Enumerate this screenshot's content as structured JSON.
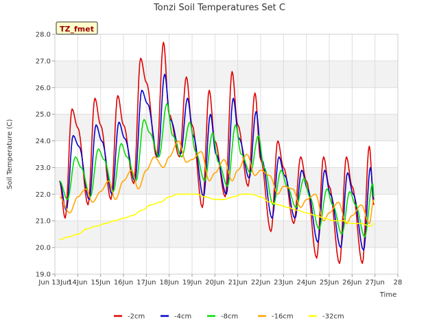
{
  "chart_data": {
    "type": "line",
    "title": "Tonzi Soil Temperatures Set C",
    "xlabel": "Time",
    "ylabel": "Soil Temperature (C)",
    "badge": "TZ_fmet",
    "xlim": [
      13,
      28
    ],
    "ylim": [
      19.0,
      28.0
    ],
    "x_tick_values": [
      13,
      14,
      15,
      16,
      17,
      18,
      19,
      20,
      21,
      22,
      23,
      24,
      25,
      26,
      27,
      28
    ],
    "x_tick_labels": [
      "Jun 13Jun",
      "14Jun",
      "15Jun",
      "16Jun",
      "17Jun",
      "18Jun",
      "19Jun",
      "20Jun",
      "21Jun",
      "22Jun",
      "23Jun",
      "24Jun",
      "25Jun",
      "26Jun",
      "27Jun",
      "28"
    ],
    "y_ticks": [
      19.0,
      20.0,
      21.0,
      22.0,
      23.0,
      24.0,
      25.0,
      26.0,
      27.0,
      28.0
    ],
    "grid": true,
    "legend_position": "bottom",
    "series": [
      {
        "name": "-2cm",
        "color": "#dd0000",
        "x": [
          13.2,
          13.45,
          13.75,
          14.0,
          14.45,
          14.75,
          15.0,
          15.45,
          15.75,
          16.0,
          16.45,
          16.75,
          17.0,
          17.45,
          17.75,
          18.0,
          18.45,
          18.75,
          19.0,
          19.45,
          19.75,
          20.0,
          20.45,
          20.75,
          21.0,
          21.45,
          21.75,
          22.0,
          22.45,
          22.75,
          23.0,
          23.45,
          23.75,
          24.0,
          24.45,
          24.75,
          25.0,
          25.45,
          25.75,
          26.0,
          26.45,
          26.75,
          26.95
        ],
        "y": [
          22.5,
          21.1,
          25.2,
          24.5,
          21.6,
          25.6,
          24.6,
          21.8,
          25.7,
          24.6,
          22.4,
          27.1,
          26.2,
          23.4,
          27.7,
          25.0,
          23.4,
          26.4,
          24.6,
          21.5,
          25.9,
          24.0,
          21.9,
          26.6,
          24.6,
          22.3,
          25.8,
          23.3,
          20.6,
          24.0,
          23.0,
          20.9,
          23.4,
          22.5,
          19.6,
          23.4,
          22.3,
          19.4,
          23.4,
          22.3,
          19.4,
          23.8,
          21.6
        ]
      },
      {
        "name": "-4cm",
        "color": "#0000cc",
        "x": [
          13.2,
          13.5,
          13.8,
          14.05,
          14.5,
          14.8,
          15.05,
          15.5,
          15.8,
          16.05,
          16.5,
          16.8,
          17.05,
          17.5,
          17.8,
          18.05,
          18.5,
          18.8,
          19.05,
          19.5,
          19.8,
          20.05,
          20.5,
          20.8,
          21.05,
          21.5,
          21.8,
          22.05,
          22.5,
          22.8,
          23.05,
          23.5,
          23.8,
          24.05,
          24.5,
          24.8,
          25.05,
          25.5,
          25.8,
          26.05,
          26.5,
          26.8,
          26.95
        ],
        "y": [
          22.5,
          21.4,
          24.2,
          23.8,
          21.8,
          24.6,
          24.0,
          22.0,
          24.7,
          24.1,
          22.5,
          25.9,
          25.4,
          23.4,
          26.5,
          24.8,
          23.5,
          25.6,
          24.2,
          21.9,
          25.0,
          23.5,
          22.0,
          25.6,
          24.1,
          22.6,
          25.1,
          23.3,
          21.1,
          23.4,
          22.7,
          21.1,
          22.9,
          22.2,
          20.2,
          22.9,
          22.0,
          20.0,
          22.8,
          22.0,
          19.9,
          23.0,
          21.8
        ]
      },
      {
        "name": "-8cm",
        "color": "#00dd00",
        "x": [
          13.2,
          13.55,
          13.9,
          14.15,
          14.55,
          14.9,
          15.15,
          15.55,
          15.9,
          16.15,
          16.55,
          16.9,
          17.15,
          17.55,
          17.9,
          18.15,
          18.55,
          18.9,
          19.15,
          19.55,
          19.9,
          20.15,
          20.55,
          20.9,
          21.15,
          21.55,
          21.9,
          22.15,
          22.55,
          22.9,
          23.15,
          23.55,
          23.9,
          24.15,
          24.55,
          24.9,
          25.15,
          25.55,
          25.9,
          26.15,
          26.55,
          26.9,
          26.95
        ],
        "y": [
          22.5,
          21.8,
          23.4,
          23.0,
          21.9,
          23.7,
          23.3,
          22.1,
          23.9,
          23.4,
          22.5,
          24.8,
          24.3,
          23.4,
          25.4,
          24.2,
          23.4,
          24.7,
          23.6,
          22.5,
          24.3,
          23.2,
          22.3,
          24.6,
          23.5,
          22.8,
          24.2,
          23.0,
          21.6,
          22.9,
          22.3,
          21.5,
          22.6,
          21.9,
          20.7,
          22.2,
          21.6,
          20.5,
          22.1,
          21.6,
          20.4,
          22.4,
          21.9
        ]
      },
      {
        "name": "-16cm",
        "color": "#ffa500",
        "x": [
          13.2,
          13.65,
          14.0,
          14.35,
          14.65,
          15.0,
          15.35,
          15.65,
          16.0,
          16.35,
          16.65,
          17.0,
          17.35,
          17.75,
          18.0,
          18.4,
          18.75,
          19.0,
          19.4,
          19.75,
          20.0,
          20.4,
          20.75,
          21.0,
          21.4,
          21.75,
          22.0,
          22.4,
          22.75,
          23.0,
          23.4,
          23.75,
          24.0,
          24.4,
          24.75,
          25.0,
          25.4,
          25.75,
          26.0,
          26.4,
          26.75,
          26.95
        ],
        "y": [
          21.9,
          21.3,
          21.9,
          22.2,
          21.7,
          22.1,
          22.5,
          21.8,
          22.5,
          22.9,
          22.2,
          22.9,
          23.4,
          23.0,
          23.4,
          24.0,
          23.2,
          23.3,
          23.6,
          22.5,
          22.8,
          23.3,
          22.5,
          22.9,
          23.5,
          22.7,
          22.9,
          22.7,
          22.0,
          22.3,
          22.2,
          21.5,
          21.8,
          22.0,
          21.0,
          21.3,
          21.7,
          20.9,
          21.2,
          21.6,
          20.9,
          21.8
        ]
      },
      {
        "name": "-32cm",
        "color": "#ffff00",
        "x": [
          13.2,
          13.6,
          14.0,
          14.4,
          14.8,
          15.2,
          15.6,
          16.0,
          16.4,
          16.8,
          17.2,
          17.6,
          18.0,
          18.4,
          18.8,
          19.2,
          19.6,
          20.0,
          20.4,
          20.8,
          21.2,
          21.6,
          22.0,
          22.4,
          22.8,
          23.2,
          23.6,
          24.0,
          24.4,
          24.8,
          25.2,
          25.6,
          26.0,
          26.4,
          26.8,
          26.95
        ],
        "y": [
          20.3,
          20.4,
          20.5,
          20.7,
          20.8,
          20.9,
          21.0,
          21.1,
          21.2,
          21.4,
          21.6,
          21.7,
          21.9,
          22.0,
          22.0,
          22.0,
          21.9,
          21.8,
          21.8,
          21.9,
          22.0,
          22.0,
          21.9,
          21.7,
          21.6,
          21.5,
          21.4,
          21.3,
          21.2,
          21.1,
          21.0,
          21.0,
          20.9,
          20.9,
          20.8,
          20.9
        ]
      }
    ]
  }
}
